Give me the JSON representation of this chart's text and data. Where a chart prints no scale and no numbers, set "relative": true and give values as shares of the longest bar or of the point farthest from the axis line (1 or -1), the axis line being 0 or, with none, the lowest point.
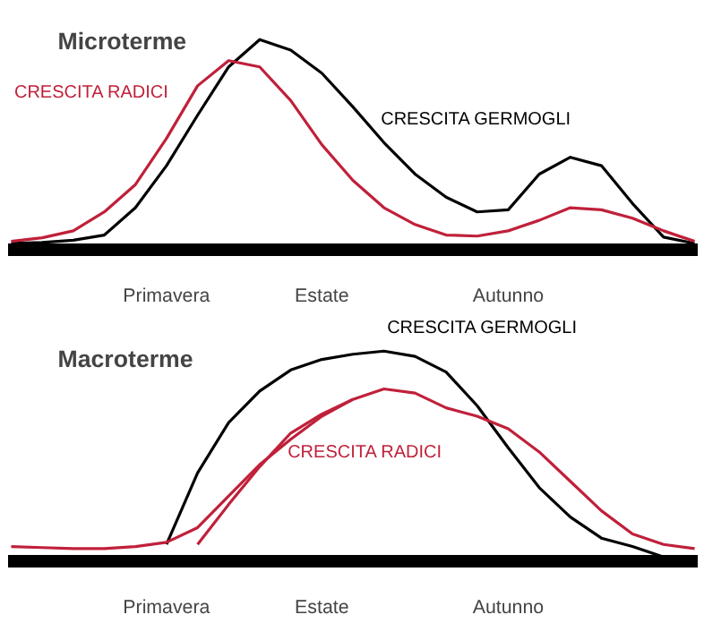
{
  "chart_data": [
    {
      "type": "line",
      "title": "Microterme",
      "relative": true,
      "legend": false,
      "grid": false,
      "categories": [
        null,
        null,
        null,
        null,
        null,
        "Primavera",
        null,
        null,
        null,
        null,
        "Estate",
        null,
        null,
        null,
        null,
        null,
        "Autunno",
        null,
        null,
        null,
        null,
        null,
        null
      ],
      "series": [
        {
          "name": "CRESCITA GERMOGLI",
          "color": "#000000",
          "values": [
            0.03,
            0.035,
            0.045,
            0.07,
            0.2,
            0.4,
            0.64,
            0.87,
            1.0,
            0.95,
            0.84,
            0.68,
            0.51,
            0.36,
            0.25,
            0.18,
            0.19,
            0.36,
            0.44,
            0.4,
            0.22,
            0.06,
            0.03
          ]
        },
        {
          "name": "CRESCITA RADICI",
          "color": "#c0203a",
          "values": [
            0.04,
            0.057,
            0.09,
            0.18,
            0.31,
            0.53,
            0.78,
            0.9,
            0.87,
            0.71,
            0.5,
            0.33,
            0.2,
            0.12,
            0.07,
            0.065,
            0.09,
            0.14,
            0.2,
            0.19,
            0.15,
            0.09,
            0.04
          ]
        }
      ]
    },
    {
      "type": "line",
      "title": "Macroterme",
      "relative": true,
      "legend": false,
      "grid": false,
      "categories": [
        null,
        null,
        null,
        null,
        null,
        "Primavera",
        null,
        null,
        null,
        null,
        "Estate",
        null,
        null,
        null,
        null,
        null,
        "Autunno",
        null,
        null,
        null,
        null,
        null,
        null
      ],
      "series": [
        {
          "name": "CRESCITA GERMOGLI",
          "color": "#000000",
          "values": [
            null,
            null,
            null,
            null,
            null,
            0.08,
            0.42,
            0.66,
            0.81,
            0.91,
            0.96,
            0.985,
            1.0,
            0.975,
            0.9,
            0.74,
            0.54,
            0.35,
            0.21,
            0.11,
            0.07,
            0.02,
            null
          ]
        },
        {
          "name": "CRESCITA RADICI",
          "color": "#c0203a",
          "values": [
            0.07,
            0.065,
            0.06,
            0.06,
            0.07,
            0.09,
            0.16,
            0.31,
            0.46,
            0.58,
            0.69,
            0.77,
            0.82,
            0.8,
            0.73,
            0.69,
            0.63,
            0.52,
            0.38,
            0.24,
            0.13,
            0.08,
            0.06
          ]
        },
        {
          "color": "#c0203a",
          "values": [
            null,
            null,
            null,
            null,
            null,
            null,
            0.08,
            0.27,
            0.45,
            0.61,
            0.7,
            0.77,
            null,
            null,
            null,
            null,
            null,
            null,
            null,
            null,
            null,
            null,
            null
          ]
        }
      ]
    }
  ]
}
